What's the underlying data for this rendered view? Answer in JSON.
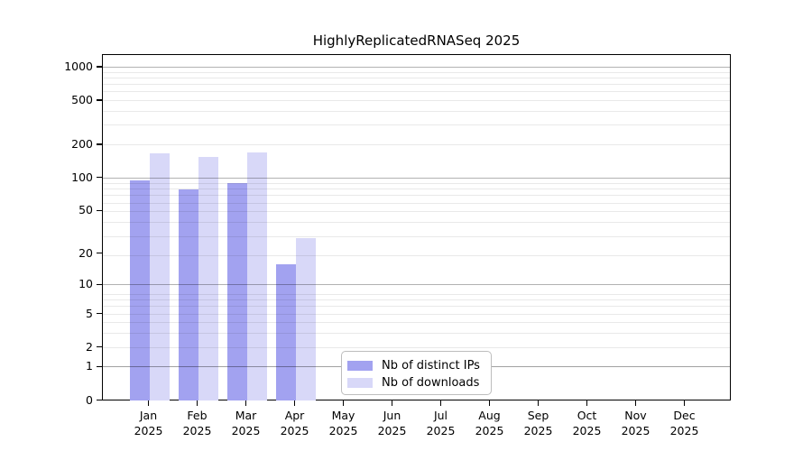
{
  "chart_data": {
    "type": "bar",
    "title": "HighlyReplicatedRNASeq 2025",
    "categories": [
      "Jan",
      "Feb",
      "Mar",
      "Apr",
      "May",
      "Jun",
      "Jul",
      "Aug",
      "Sep",
      "Oct",
      "Nov",
      "Dec"
    ],
    "x_year_label": "2025",
    "series": [
      {
        "name": "Nb of distinct IPs",
        "color": "#a2a2f0",
        "values": [
          95,
          79,
          91,
          16,
          0,
          0,
          0,
          0,
          0,
          0,
          0,
          0
        ]
      },
      {
        "name": "Nb of downloads",
        "color": "#d8d8f8",
        "values": [
          170,
          156,
          173,
          28,
          0,
          0,
          0,
          0,
          0,
          0,
          0,
          0
        ]
      }
    ],
    "yscale": "log10(value+1)",
    "yticks": [
      0,
      1,
      2,
      5,
      10,
      20,
      50,
      100,
      200,
      500,
      1000
    ],
    "major_gridlines_at": [
      1,
      10,
      100,
      1000
    ],
    "ylim": [
      0,
      1300
    ],
    "grid": "horizontal, minor log decades light gray, majors darker",
    "legend_position": "inside bottom-center",
    "xlabel": "",
    "ylabel": ""
  }
}
